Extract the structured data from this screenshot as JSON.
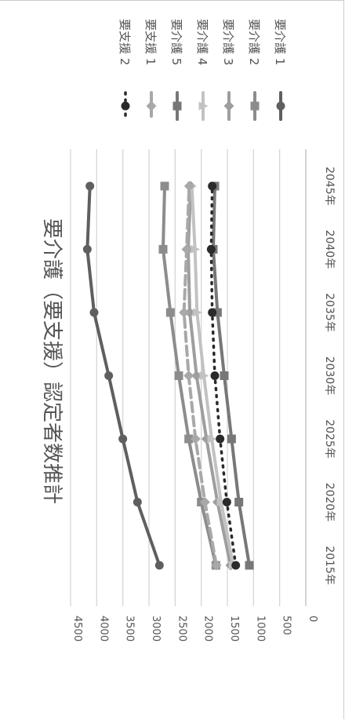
{
  "chart_data": {
    "type": "line",
    "title": "要介護（要支援）認定者数推計",
    "x": [
      "2015年",
      "2020年",
      "2025年",
      "2030年",
      "2035年",
      "2040年",
      "2045年"
    ],
    "ylim": [
      0,
      4500
    ],
    "yticks": [
      0,
      500,
      1000,
      1500,
      2000,
      2500,
      3000,
      3500,
      4000,
      4500
    ],
    "grid": true,
    "legend": "right",
    "orientation": "rotated-90-clockwise",
    "series": [
      {
        "name": "要介護 1",
        "marker": "circle",
        "dash": "solid",
        "color": "#5f5f5f",
        "values": [
          2800,
          3220,
          3500,
          3770,
          4050,
          4180,
          4130
        ]
      },
      {
        "name": "要介護 2",
        "marker": "square",
        "dash": "solid",
        "color": "#8c8c8c",
        "values": [
          1720,
          2000,
          2240,
          2430,
          2590,
          2730,
          2700
        ]
      },
      {
        "name": "要介護 3",
        "marker": "diamond",
        "dash": "solid",
        "color": "#9e9e9e",
        "values": [
          1440,
          1690,
          1900,
          2090,
          2220,
          2250,
          2200
        ]
      },
      {
        "name": "要介護 4",
        "marker": "triangle",
        "dash": "solid",
        "color": "#c2c2c2",
        "values": [
          1390,
          1620,
          1800,
          1950,
          2080,
          2120,
          2180
        ]
      },
      {
        "name": "要介護 5",
        "marker": "square",
        "dash": "solid",
        "color": "#777777",
        "values": [
          1080,
          1280,
          1420,
          1560,
          1690,
          1770,
          1740
        ]
      },
      {
        "name": "要支援 1",
        "marker": "diamond",
        "dash": "dashed",
        "color": "#a8a8a8",
        "values": [
          1710,
          1930,
          2110,
          2240,
          2330,
          2280,
          2230
        ]
      },
      {
        "name": "要支援 2",
        "marker": "circle",
        "dash": "dotted",
        "color": "#2a2a2a",
        "values": [
          1340,
          1510,
          1640,
          1740,
          1790,
          1810,
          1790
        ]
      }
    ]
  }
}
